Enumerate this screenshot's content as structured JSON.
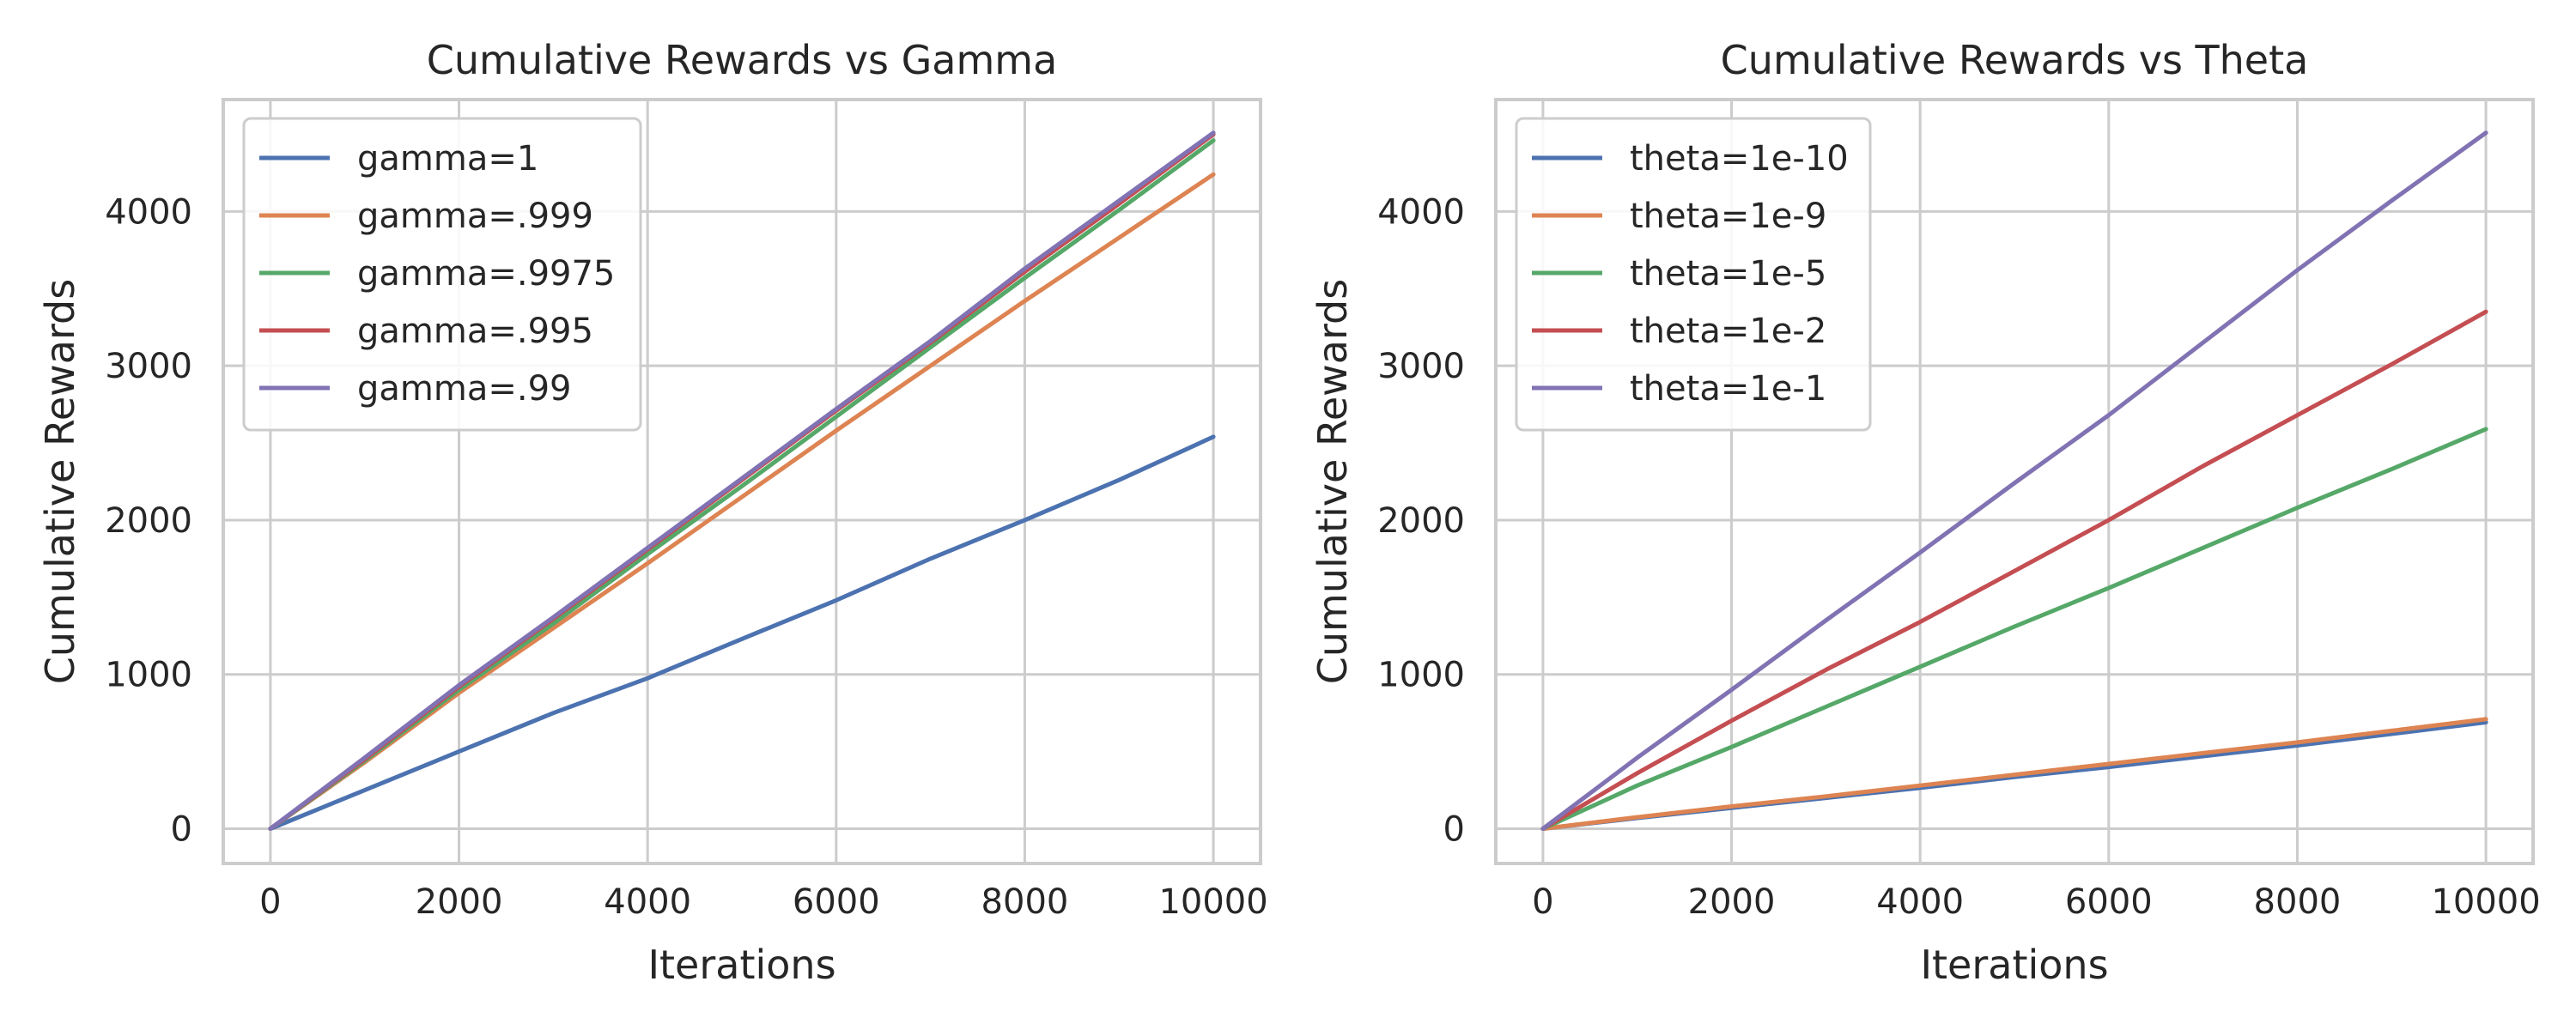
{
  "colors": {
    "blue": "#4c72b0",
    "orange": "#dd8452",
    "green": "#55a868",
    "red": "#c44e52",
    "purple": "#8172b3",
    "grid": "#cccccc",
    "background": "#ffffff"
  },
  "chart_data": [
    {
      "type": "line",
      "title": "Cumulative Rewards vs Gamma",
      "xlabel": "Iterations",
      "ylabel": "Cumulative Rewards",
      "xlim": [
        -500,
        10500
      ],
      "ylim": [
        -225,
        4725
      ],
      "xticks": [
        0,
        2000,
        4000,
        6000,
        8000,
        10000
      ],
      "yticks": [
        0,
        1000,
        2000,
        3000,
        4000
      ],
      "grid": true,
      "legend_position": "upper-left",
      "series": [
        {
          "name": "gamma=1",
          "color": "blue",
          "x": [
            0,
            1000,
            2000,
            3000,
            4000,
            5000,
            6000,
            7000,
            8000,
            9000,
            10000
          ],
          "y": [
            0,
            250,
            500,
            750,
            975,
            1230,
            1480,
            1750,
            2000,
            2260,
            2540
          ]
        },
        {
          "name": "gamma=.999",
          "color": "orange",
          "x": [
            0,
            1000,
            2000,
            3000,
            4000,
            5000,
            6000,
            7000,
            8000,
            9000,
            10000
          ],
          "y": [
            0,
            430,
            880,
            1300,
            1720,
            2150,
            2580,
            3000,
            3420,
            3830,
            4240
          ]
        },
        {
          "name": "gamma=.9975",
          "color": "green",
          "x": [
            0,
            1000,
            2000,
            3000,
            4000,
            5000,
            6000,
            7000,
            8000,
            9000,
            10000
          ],
          "y": [
            0,
            440,
            900,
            1330,
            1780,
            2220,
            2670,
            3120,
            3570,
            4010,
            4460
          ]
        },
        {
          "name": "gamma=.995",
          "color": "red",
          "x": [
            0,
            1000,
            2000,
            3000,
            4000,
            5000,
            6000,
            7000,
            8000,
            9000,
            10000
          ],
          "y": [
            0,
            450,
            920,
            1360,
            1810,
            2260,
            2710,
            3150,
            3610,
            4050,
            4500
          ]
        },
        {
          "name": "gamma=.99",
          "color": "purple",
          "x": [
            0,
            1000,
            2000,
            3000,
            4000,
            5000,
            6000,
            7000,
            8000,
            9000,
            10000
          ],
          "y": [
            0,
            460,
            930,
            1370,
            1820,
            2270,
            2720,
            3160,
            3630,
            4070,
            4510
          ]
        }
      ]
    },
    {
      "type": "line",
      "title": "Cumulative Rewards vs Theta",
      "xlabel": "Iterations",
      "ylabel": "Cumulative Rewards",
      "xlim": [
        -500,
        10500
      ],
      "ylim": [
        -225,
        4725
      ],
      "xticks": [
        0,
        2000,
        4000,
        6000,
        8000,
        10000
      ],
      "yticks": [
        0,
        1000,
        2000,
        3000,
        4000
      ],
      "grid": true,
      "legend_position": "upper-left",
      "series": [
        {
          "name": "theta=1e-10",
          "color": "blue",
          "x": [
            0,
            1000,
            2000,
            3000,
            4000,
            5000,
            6000,
            7000,
            8000,
            9000,
            10000
          ],
          "y": [
            0,
            70,
            135,
            200,
            265,
            335,
            400,
            470,
            540,
            615,
            690
          ]
        },
        {
          "name": "theta=1e-9",
          "color": "orange",
          "x": [
            0,
            1000,
            2000,
            3000,
            4000,
            5000,
            6000,
            7000,
            8000,
            9000,
            10000
          ],
          "y": [
            0,
            75,
            145,
            210,
            280,
            350,
            420,
            490,
            560,
            635,
            710
          ]
        },
        {
          "name": "theta=1e-5",
          "color": "green",
          "x": [
            0,
            1000,
            2000,
            3000,
            4000,
            5000,
            6000,
            7000,
            8000,
            9000,
            10000
          ],
          "y": [
            0,
            280,
            530,
            790,
            1050,
            1310,
            1560,
            1820,
            2080,
            2330,
            2590
          ]
        },
        {
          "name": "theta=1e-2",
          "color": "red",
          "x": [
            0,
            1000,
            2000,
            3000,
            4000,
            5000,
            6000,
            7000,
            8000,
            9000,
            10000
          ],
          "y": [
            0,
            360,
            700,
            1030,
            1340,
            1670,
            2000,
            2350,
            2680,
            3010,
            3350
          ]
        },
        {
          "name": "theta=1e-1",
          "color": "purple",
          "x": [
            0,
            1000,
            2000,
            3000,
            4000,
            5000,
            6000,
            7000,
            8000,
            9000,
            10000
          ],
          "y": [
            0,
            460,
            900,
            1350,
            1790,
            2240,
            2680,
            3150,
            3620,
            4070,
            4510
          ]
        }
      ]
    }
  ]
}
